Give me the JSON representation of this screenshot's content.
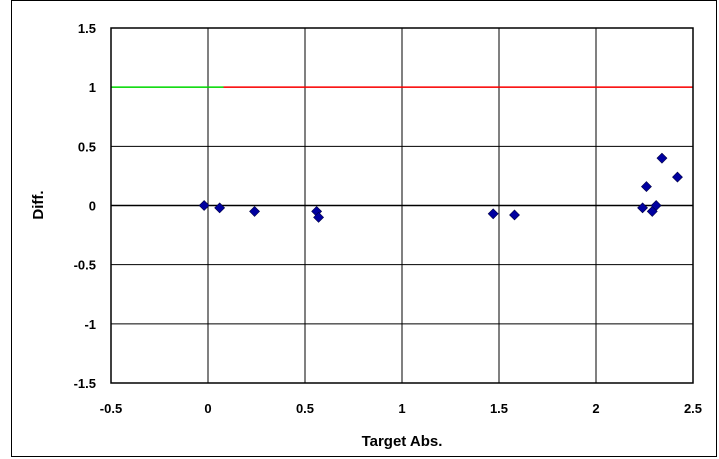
{
  "chart_data": {
    "type": "scatter",
    "xlabel": "Target Abs.",
    "ylabel": "Diff.",
    "xlim": [
      -0.5,
      2.5
    ],
    "ylim": [
      -1.5,
      1.5
    ],
    "x_ticks": [
      -0.5,
      0,
      0.5,
      1,
      1.5,
      2,
      2.5
    ],
    "y_ticks": [
      -1.5,
      -1,
      -0.5,
      0,
      0.5,
      1,
      1.5
    ],
    "x_tick_labels": [
      "-0.5",
      "0",
      "0.5",
      "1",
      "1.5",
      "2",
      "2.5"
    ],
    "y_tick_labels": [
      "-1.5",
      "-1",
      "-0.5",
      "0",
      "0.5",
      "1",
      "1.5"
    ],
    "grid": true,
    "series": [
      {
        "marker": "diamond",
        "color": "#0000a0",
        "points": [
          {
            "x": -0.02,
            "y": 0.0
          },
          {
            "x": 0.06,
            "y": -0.02
          },
          {
            "x": 0.24,
            "y": -0.05
          },
          {
            "x": 0.56,
            "y": -0.05
          },
          {
            "x": 0.57,
            "y": -0.1
          },
          {
            "x": 1.47,
            "y": -0.07
          },
          {
            "x": 1.58,
            "y": -0.08
          },
          {
            "x": 2.24,
            "y": -0.02
          },
          {
            "x": 2.26,
            "y": 0.16
          },
          {
            "x": 2.29,
            "y": -0.05
          },
          {
            "x": 2.31,
            "y": 0.0
          },
          {
            "x": 2.34,
            "y": 0.4
          },
          {
            "x": 2.42,
            "y": 0.24
          }
        ]
      }
    ],
    "reference_line": {
      "y": 1,
      "segments": [
        {
          "x_start": -0.5,
          "x_end": 0.08,
          "color": "#00dd00"
        },
        {
          "x_start": 0.08,
          "x_end": 2.5,
          "color": "#ff0000"
        }
      ]
    },
    "zero_line": {
      "y": 0,
      "color": "#000000"
    }
  }
}
